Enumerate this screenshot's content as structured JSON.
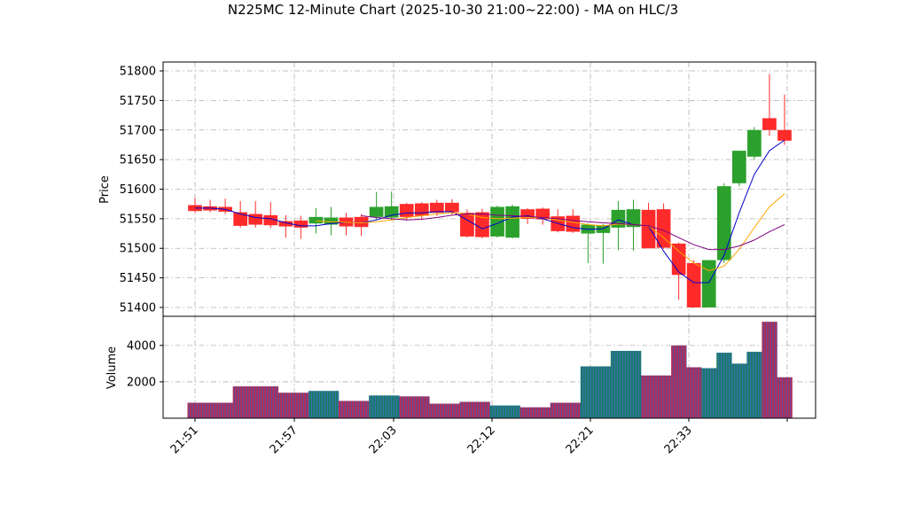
{
  "chart_data": {
    "type": "candlestick",
    "title": "N225MC 12-Minute Chart (2025-10-30 21:00~22:00) - MA on HLC/3",
    "ylabel_price": "Price",
    "ylabel_volume": "Volume",
    "price_ylim": [
      51385,
      51815
    ],
    "volume_ylim": [
      0,
      5600
    ],
    "price_ticks": [
      51400,
      51450,
      51500,
      51550,
      51600,
      51650,
      51700,
      51750,
      51800
    ],
    "volume_ticks": [
      2000,
      4000
    ],
    "x_tick_labels": [
      "21:51",
      "21:57",
      "22:03",
      "22:12",
      "22:21",
      "22:33"
    ],
    "grid": true,
    "up_color": "#2ca02c",
    "down_color": "#ff2a2a",
    "ma_colors": [
      "#0000cc",
      "#ffa500",
      "#800080"
    ],
    "bars": [
      {
        "o": 51573,
        "h": 51585,
        "l": 51560,
        "c": 51563,
        "v": 850
      },
      {
        "o": 51571,
        "h": 51582,
        "l": 51561,
        "c": 51564,
        "v": 850
      },
      {
        "o": 51570,
        "h": 51584,
        "l": 51558,
        "c": 51562,
        "v": 850
      },
      {
        "o": 51561,
        "h": 51580,
        "l": 51535,
        "c": 51538,
        "v": 1750
      },
      {
        "o": 51558,
        "h": 51580,
        "l": 51535,
        "c": 51540,
        "v": 1750
      },
      {
        "o": 51556,
        "h": 51578,
        "l": 51534,
        "c": 51539,
        "v": 1750
      },
      {
        "o": 51546,
        "h": 51556,
        "l": 51518,
        "c": 51537,
        "v": 1400
      },
      {
        "o": 51547,
        "h": 51555,
        "l": 51516,
        "c": 51535,
        "v": 1400
      },
      {
        "o": 51542,
        "h": 51568,
        "l": 51525,
        "c": 51553,
        "v": 1500
      },
      {
        "o": 51540,
        "h": 51570,
        "l": 51522,
        "c": 51552,
        "v": 1500
      },
      {
        "o": 51552,
        "h": 51560,
        "l": 51522,
        "c": 51537,
        "v": 950
      },
      {
        "o": 51553,
        "h": 51558,
        "l": 51521,
        "c": 51536,
        "v": 950
      },
      {
        "o": 51553,
        "h": 51595,
        "l": 51548,
        "c": 51570,
        "v": 1250
      },
      {
        "o": 51552,
        "h": 51596,
        "l": 51547,
        "c": 51571,
        "v": 1250
      },
      {
        "o": 51575,
        "h": 51577,
        "l": 51547,
        "c": 51553,
        "v": 1200
      },
      {
        "o": 51576,
        "h": 51578,
        "l": 51548,
        "c": 51555,
        "v": 1200
      },
      {
        "o": 51577,
        "h": 51582,
        "l": 51555,
        "c": 51560,
        "v": 800
      },
      {
        "o": 51577,
        "h": 51583,
        "l": 51557,
        "c": 51561,
        "v": 800
      },
      {
        "o": 51560,
        "h": 51566,
        "l": 51518,
        "c": 51520,
        "v": 900
      },
      {
        "o": 51561,
        "h": 51567,
        "l": 51517,
        "c": 51519,
        "v": 900
      },
      {
        "o": 51520,
        "h": 51572,
        "l": 51518,
        "c": 51570,
        "v": 700
      },
      {
        "o": 51518,
        "h": 51574,
        "l": 51517,
        "c": 51571,
        "v": 700
      },
      {
        "o": 51566,
        "h": 51568,
        "l": 51541,
        "c": 51550,
        "v": 600
      },
      {
        "o": 51567,
        "h": 51569,
        "l": 51540,
        "c": 51549,
        "v": 600
      },
      {
        "o": 51554,
        "h": 51566,
        "l": 51527,
        "c": 51529,
        "v": 850
      },
      {
        "o": 51555,
        "h": 51566,
        "l": 51526,
        "c": 51528,
        "v": 850
      },
      {
        "o": 51525,
        "h": 51542,
        "l": 51475,
        "c": 51540,
        "v": 2850
      },
      {
        "o": 51526,
        "h": 51541,
        "l": 51474,
        "c": 51539,
        "v": 2850
      },
      {
        "o": 51535,
        "h": 51580,
        "l": 51497,
        "c": 51565,
        "v": 3700
      },
      {
        "o": 51536,
        "h": 51582,
        "l": 51496,
        "c": 51566,
        "v": 3700
      },
      {
        "o": 51565,
        "h": 51577,
        "l": 51500,
        "c": 51500,
        "v": 2350
      },
      {
        "o": 51566,
        "h": 51576,
        "l": 51499,
        "c": 51501,
        "v": 2350
      },
      {
        "o": 51508,
        "h": 51510,
        "l": 51413,
        "c": 51455,
        "v": 4000
      },
      {
        "o": 51475,
        "h": 51480,
        "l": 51400,
        "c": 51400,
        "v": 2800
      },
      {
        "o": 51400,
        "h": 51480,
        "l": 51400,
        "c": 51480,
        "v": 2750
      },
      {
        "o": 51480,
        "h": 51610,
        "l": 51475,
        "c": 51605,
        "v": 3600
      },
      {
        "o": 51610,
        "h": 51665,
        "l": 51605,
        "c": 51665,
        "v": 3000
      },
      {
        "o": 51655,
        "h": 51705,
        "l": 51650,
        "c": 51700,
        "v": 3650
      },
      {
        "o": 51720,
        "h": 51795,
        "l": 51690,
        "c": 51700,
        "v": 5300
      },
      {
        "o": 51700,
        "h": 51760,
        "l": 51675,
        "c": 51682,
        "v": 2250
      }
    ],
    "ma_fast": [
      51568,
      51568,
      51566,
      51558,
      51552,
      51550,
      51543,
      51538,
      51538,
      51542,
      51544,
      51543,
      51548,
      51556,
      51560,
      51560,
      51562,
      51562,
      51548,
      51533,
      51542,
      51553,
      51555,
      51550,
      51542,
      51535,
      51532,
      51533,
      51548,
      51540,
      51538,
      51495,
      51460,
      51442,
      51442,
      51488,
      51560,
      51625,
      51665,
      51683
    ],
    "ma_mid": [
      null,
      null,
      null,
      null,
      null,
      null,
      null,
      null,
      51546,
      51545,
      51544,
      51543,
      51545,
      51548,
      51552,
      51555,
      51558,
      51560,
      51558,
      51552,
      51550,
      51551,
      51552,
      51552,
      51548,
      51544,
      51540,
      51538,
      51541,
      51540,
      51538,
      51518,
      51495,
      51475,
      51462,
      51470,
      51498,
      51535,
      51570,
      51592
    ],
    "ma_slow": [
      null,
      null,
      null,
      null,
      null,
      null,
      null,
      null,
      null,
      null,
      null,
      51555,
      51552,
      51550,
      51548,
      51549,
      51552,
      51556,
      51558,
      51558,
      51556,
      51555,
      51554,
      51552,
      51550,
      51547,
      51545,
      51543,
      51542,
      51540,
      51538,
      51530,
      51518,
      51506,
      51498,
      51498,
      51504,
      51514,
      51528,
      51540
    ]
  }
}
